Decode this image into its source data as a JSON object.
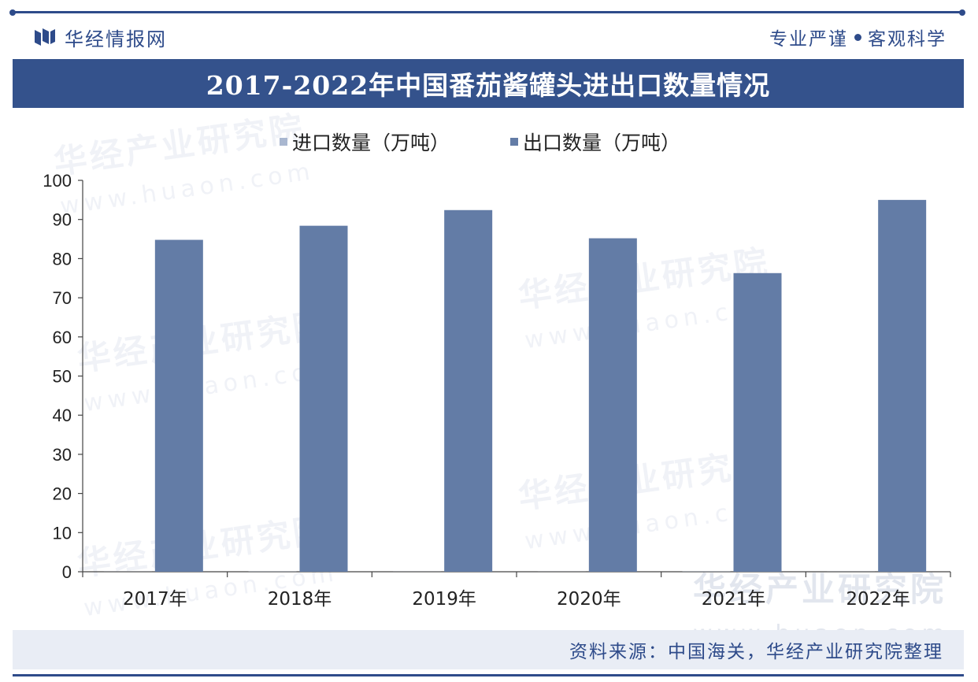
{
  "header": {
    "brand": "华经情报网",
    "slogan_left": "专业严谨",
    "slogan_right": "客观科学"
  },
  "title": "2017-2022年中国番茄酱罐头进出口数量情况",
  "watermark": {
    "name": "华经产业研究院",
    "url": "www.huaon.com",
    "corner_name": "华经产业研究院",
    "corner_url": "www.huaon.com"
  },
  "footer": {
    "source": "资料来源：中国海关，华经产业研究院整理"
  },
  "colors": {
    "brand_blue": "#2e4b8a",
    "title_bar": "#34528c",
    "import_series": "#a9b7d0",
    "export_series": "#637ca6"
  },
  "chart_data": {
    "type": "bar",
    "categories": [
      "2017年",
      "2018年",
      "2019年",
      "2020年",
      "2021年",
      "2022年"
    ],
    "series": [
      {
        "name": "进口数量（万吨）",
        "values": [
          0.02,
          0.05,
          0.02,
          0.02,
          0.05,
          0.02
        ]
      },
      {
        "name": "出口数量（万吨）",
        "values": [
          84.8,
          88.4,
          92.4,
          85.2,
          76.3,
          95.0
        ]
      }
    ],
    "ylim": [
      0,
      100
    ],
    "yticks": [
      "0",
      "10",
      "20",
      "30",
      "40",
      "50",
      "60",
      "70",
      "80",
      "90",
      "100"
    ],
    "grid": false,
    "legend_position": "top"
  }
}
